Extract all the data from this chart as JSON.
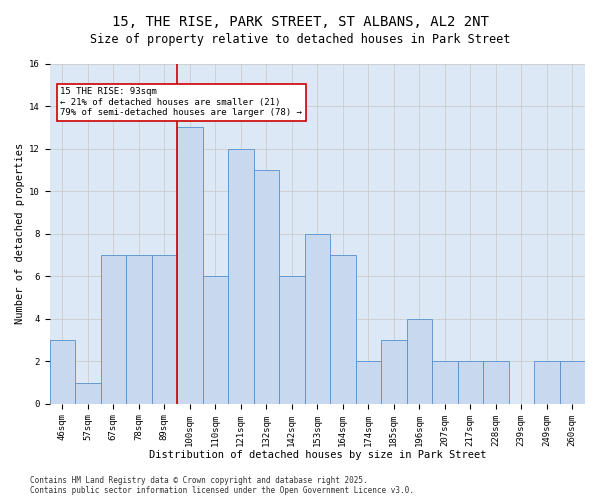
{
  "title": "15, THE RISE, PARK STREET, ST ALBANS, AL2 2NT",
  "subtitle": "Size of property relative to detached houses in Park Street",
  "xlabel": "Distribution of detached houses by size in Park Street",
  "ylabel": "Number of detached properties",
  "bin_labels": [
    "46sqm",
    "57sqm",
    "67sqm",
    "78sqm",
    "89sqm",
    "100sqm",
    "110sqm",
    "121sqm",
    "132sqm",
    "142sqm",
    "153sqm",
    "164sqm",
    "174sqm",
    "185sqm",
    "196sqm",
    "207sqm",
    "217sqm",
    "228sqm",
    "239sqm",
    "249sqm",
    "260sqm"
  ],
  "bar_values": [
    3,
    1,
    7,
    7,
    7,
    13,
    6,
    12,
    11,
    6,
    8,
    7,
    2,
    3,
    4,
    2,
    2,
    2,
    0,
    2,
    2
  ],
  "bar_color": "#c8d8ee",
  "bar_edge_color": "#5590cc",
  "red_line_x": 4.5,
  "annotation_line1": "15 THE RISE: 93sqm",
  "annotation_line2": "← 21% of detached houses are smaller (21)",
  "annotation_line3": "79% of semi-detached houses are larger (78) →",
  "annotation_box_color": "#ffffff",
  "annotation_box_edge": "#cc0000",
  "red_line_color": "#cc0000",
  "ylim": [
    0,
    16
  ],
  "yticks": [
    0,
    2,
    4,
    6,
    8,
    10,
    12,
    14,
    16
  ],
  "grid_color": "#cccccc",
  "bg_color": "#dce8f5",
  "fig_bg_color": "#ffffff",
  "footer": "Contains HM Land Registry data © Crown copyright and database right 2025.\nContains public sector information licensed under the Open Government Licence v3.0.",
  "title_fontsize": 10,
  "subtitle_fontsize": 8.5,
  "axis_label_fontsize": 7.5,
  "tick_fontsize": 6.5,
  "footer_fontsize": 5.5,
  "annot_fontsize": 6.5
}
